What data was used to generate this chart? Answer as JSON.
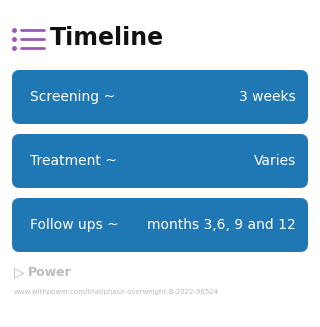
{
  "title": "Timeline",
  "title_fontsize": 17,
  "title_color": "#111111",
  "icon_color": "#9b59b6",
  "background_color": "#ffffff",
  "rows": [
    {
      "label": "Screening ~",
      "value": "3 weeks",
      "gradient_left": "#4a9ff5",
      "gradient_right": "#5b6ef5",
      "text_color": "#ffffff",
      "font_size": 10
    },
    {
      "label": "Treatment ~",
      "value": "Varies",
      "gradient_left": "#6e72e8",
      "gradient_right": "#b07ad6",
      "text_color": "#ffffff",
      "font_size": 10
    },
    {
      "label": "Follow ups ~",
      "value": "months 3,6, 9 and 12",
      "gradient_left": "#9f7dd6",
      "gradient_right": "#cc7fcf",
      "text_color": "#ffffff",
      "font_size": 10
    }
  ],
  "watermark": "Power",
  "watermark_color": "#bbbbbb",
  "watermark_fontsize": 9,
  "url_text": "www.withpower.com/trial/phase-overweight-8-2022-96524",
  "url_color": "#bbbbbb",
  "url_fontsize": 5.0,
  "fig_width": 3.2,
  "fig_height": 3.27,
  "dpi": 100
}
